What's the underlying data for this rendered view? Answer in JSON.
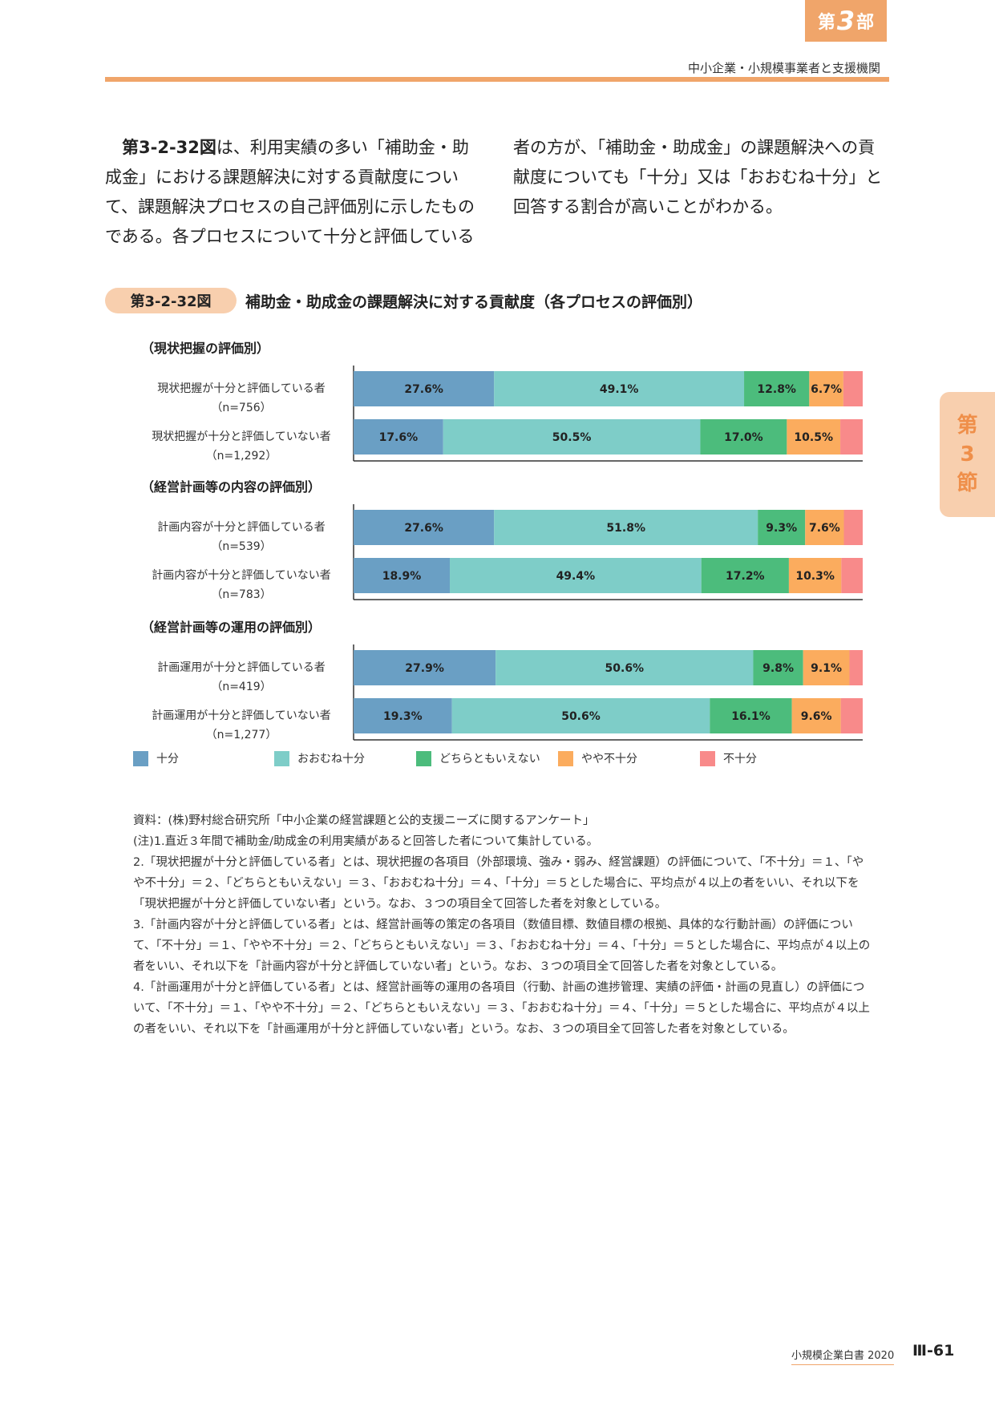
{
  "header": {
    "part_prefix": "第",
    "part_number": "3",
    "part_suffix": "部",
    "subtitle": "中小企業・小規模事業者と支援機関"
  },
  "body_text": {
    "ref": "第3-2-32図",
    "left_text": "は、利用実績の多い「補助金・助成金」における課題解決に対する貢献度について、課題解決プロセスの自己評価別に示したものである。各プロセスについて十分と評価している",
    "right_text": "者の方が、「補助金・助成金」の課題解決への貢献度についても「十分」又は「おおむね十分」と回答する割合が高いことがわかる。"
  },
  "figure": {
    "badge": "第3-2-32図",
    "title": "補助金・助成金の課題解決に対する貢献度（各プロセスの評価別）"
  },
  "chart_data": {
    "type": "bar",
    "orientation": "horizontal-stacked-100",
    "series": [
      {
        "name": "十分",
        "color": "#6a9fc4"
      },
      {
        "name": "おおむね十分",
        "color": "#7ecdc8"
      },
      {
        "name": "どちらともいえない",
        "color": "#4cbc7c"
      },
      {
        "name": "やや不十分",
        "color": "#fbac5e"
      },
      {
        "name": "不十分",
        "color": "#f88a8a"
      }
    ],
    "groups": [
      {
        "title": "（現状把握の評価別）",
        "rows": [
          {
            "label": "現状把握が十分と評価している者",
            "n": "（n=756）",
            "values": [
              27.6,
              49.1,
              12.8,
              6.7,
              3.8
            ]
          },
          {
            "label": "現状把握が十分と評価していない者",
            "n": "（n=1,292）",
            "values": [
              17.6,
              50.5,
              17.0,
              10.5,
              4.4
            ]
          }
        ]
      },
      {
        "title": "（経営計画等の内容の評価別）",
        "rows": [
          {
            "label": "計画内容が十分と評価している者",
            "n": "（n=539）",
            "values": [
              27.6,
              51.8,
              9.3,
              7.6,
              3.7
            ]
          },
          {
            "label": "計画内容が十分と評価していない者",
            "n": "（n=783）",
            "values": [
              18.9,
              49.4,
              17.2,
              10.3,
              4.2
            ]
          }
        ]
      },
      {
        "title": "（経営計画等の運用の評価別）",
        "rows": [
          {
            "label": "計画運用が十分と評価している者",
            "n": "（n=419）",
            "values": [
              27.9,
              50.6,
              9.8,
              9.1,
              2.6
            ]
          },
          {
            "label": "計画運用が十分と評価していない者",
            "n": "（n=1,277）",
            "values": [
              19.3,
              50.6,
              16.1,
              9.6,
              4.3
            ]
          }
        ]
      }
    ],
    "value_labels": [
      [
        "27.6%",
        "49.1%",
        "12.8%",
        "6.7%",
        ""
      ],
      [
        "17.6%",
        "50.5%",
        "17.0%",
        "10.5%",
        ""
      ],
      [
        "27.6%",
        "51.8%",
        "9.3%",
        "7.6%",
        ""
      ],
      [
        "18.9%",
        "49.4%",
        "17.2%",
        "10.3%",
        ""
      ],
      [
        "27.9%",
        "50.6%",
        "9.8%",
        "9.1%",
        ""
      ],
      [
        "19.3%",
        "50.6%",
        "16.1%",
        "9.6%",
        ""
      ]
    ],
    "xlim": [
      0,
      100
    ],
    "legend": "bottom"
  },
  "notes": [
    "資料：(株)野村総合研究所「中小企業の経営課題と公的支援ニーズに関するアンケート」",
    "(注)1.直近３年間で補助金/助成金の利用実績があると回答した者について集計している。",
    "2.「現状把握が十分と評価している者」とは、現状把握の各項目（外部環境、強み・弱み、経営課題）の評価について、「不十分」＝１、「やや不十分」＝２、「どちらともいえない」＝３、「おおむね十分」＝４、「十分」＝５とした場合に、平均点が４以上の者をいい、それ以下を「現状把握が十分と評価していない者」という。なお、３つの項目全て回答した者を対象としている。",
    "3.「計画内容が十分と評価している者」とは、経営計画等の策定の各項目（数値目標、数値目標の根拠、具体的な行動計画）の評価について、「不十分」＝１、「やや不十分」＝２、「どちらともいえない」＝３、「おおむね十分」＝４、「十分」＝５とした場合に、平均点が４以上の者をいい、それ以下を「計画内容が十分と評価していない者」という。なお、３つの項目全て回答した者を対象としている。",
    "4.「計画運用が十分と評価している者」とは、経営計画等の運用の各項目（行動、計画の進捗管理、実績の評価・計画の見直し）の評価について、「不十分」＝１、「やや不十分」＝２、「どちらともいえない」＝３、「おおむね十分」＝４、「十分」＝５とした場合に、平均点が４以上の者をいい、それ以下を「計画運用が十分と評価していない者」という。なお、３つの項目全て回答した者を対象としている。"
  ],
  "side_tab": [
    "第",
    "3",
    "節"
  ],
  "footer": {
    "publication": "小規模企業白書 2020",
    "page": "Ⅲ-61"
  }
}
